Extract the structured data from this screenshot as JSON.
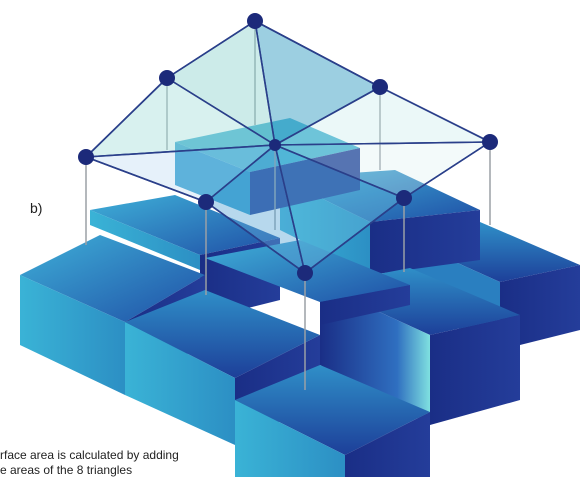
{
  "figure": {
    "panel_label": "b)",
    "caption_line1": "rface area is calculated by adding",
    "caption_line2": "e areas of the 8 triangles",
    "colors": {
      "block_top_light": "#39a7cf",
      "block_top_dark": "#1f4fa6",
      "block_side_front": "#3ab3d6",
      "block_side_right": "#1a2e86",
      "triangle_fill": "#8fd3cf",
      "triangle_edge": "#2a3f8a",
      "vertex": "#1c2a7a",
      "stem": "#9aa0a6"
    },
    "icons": [
      "vertex-node",
      "triangle-facet",
      "terrain-block"
    ]
  }
}
